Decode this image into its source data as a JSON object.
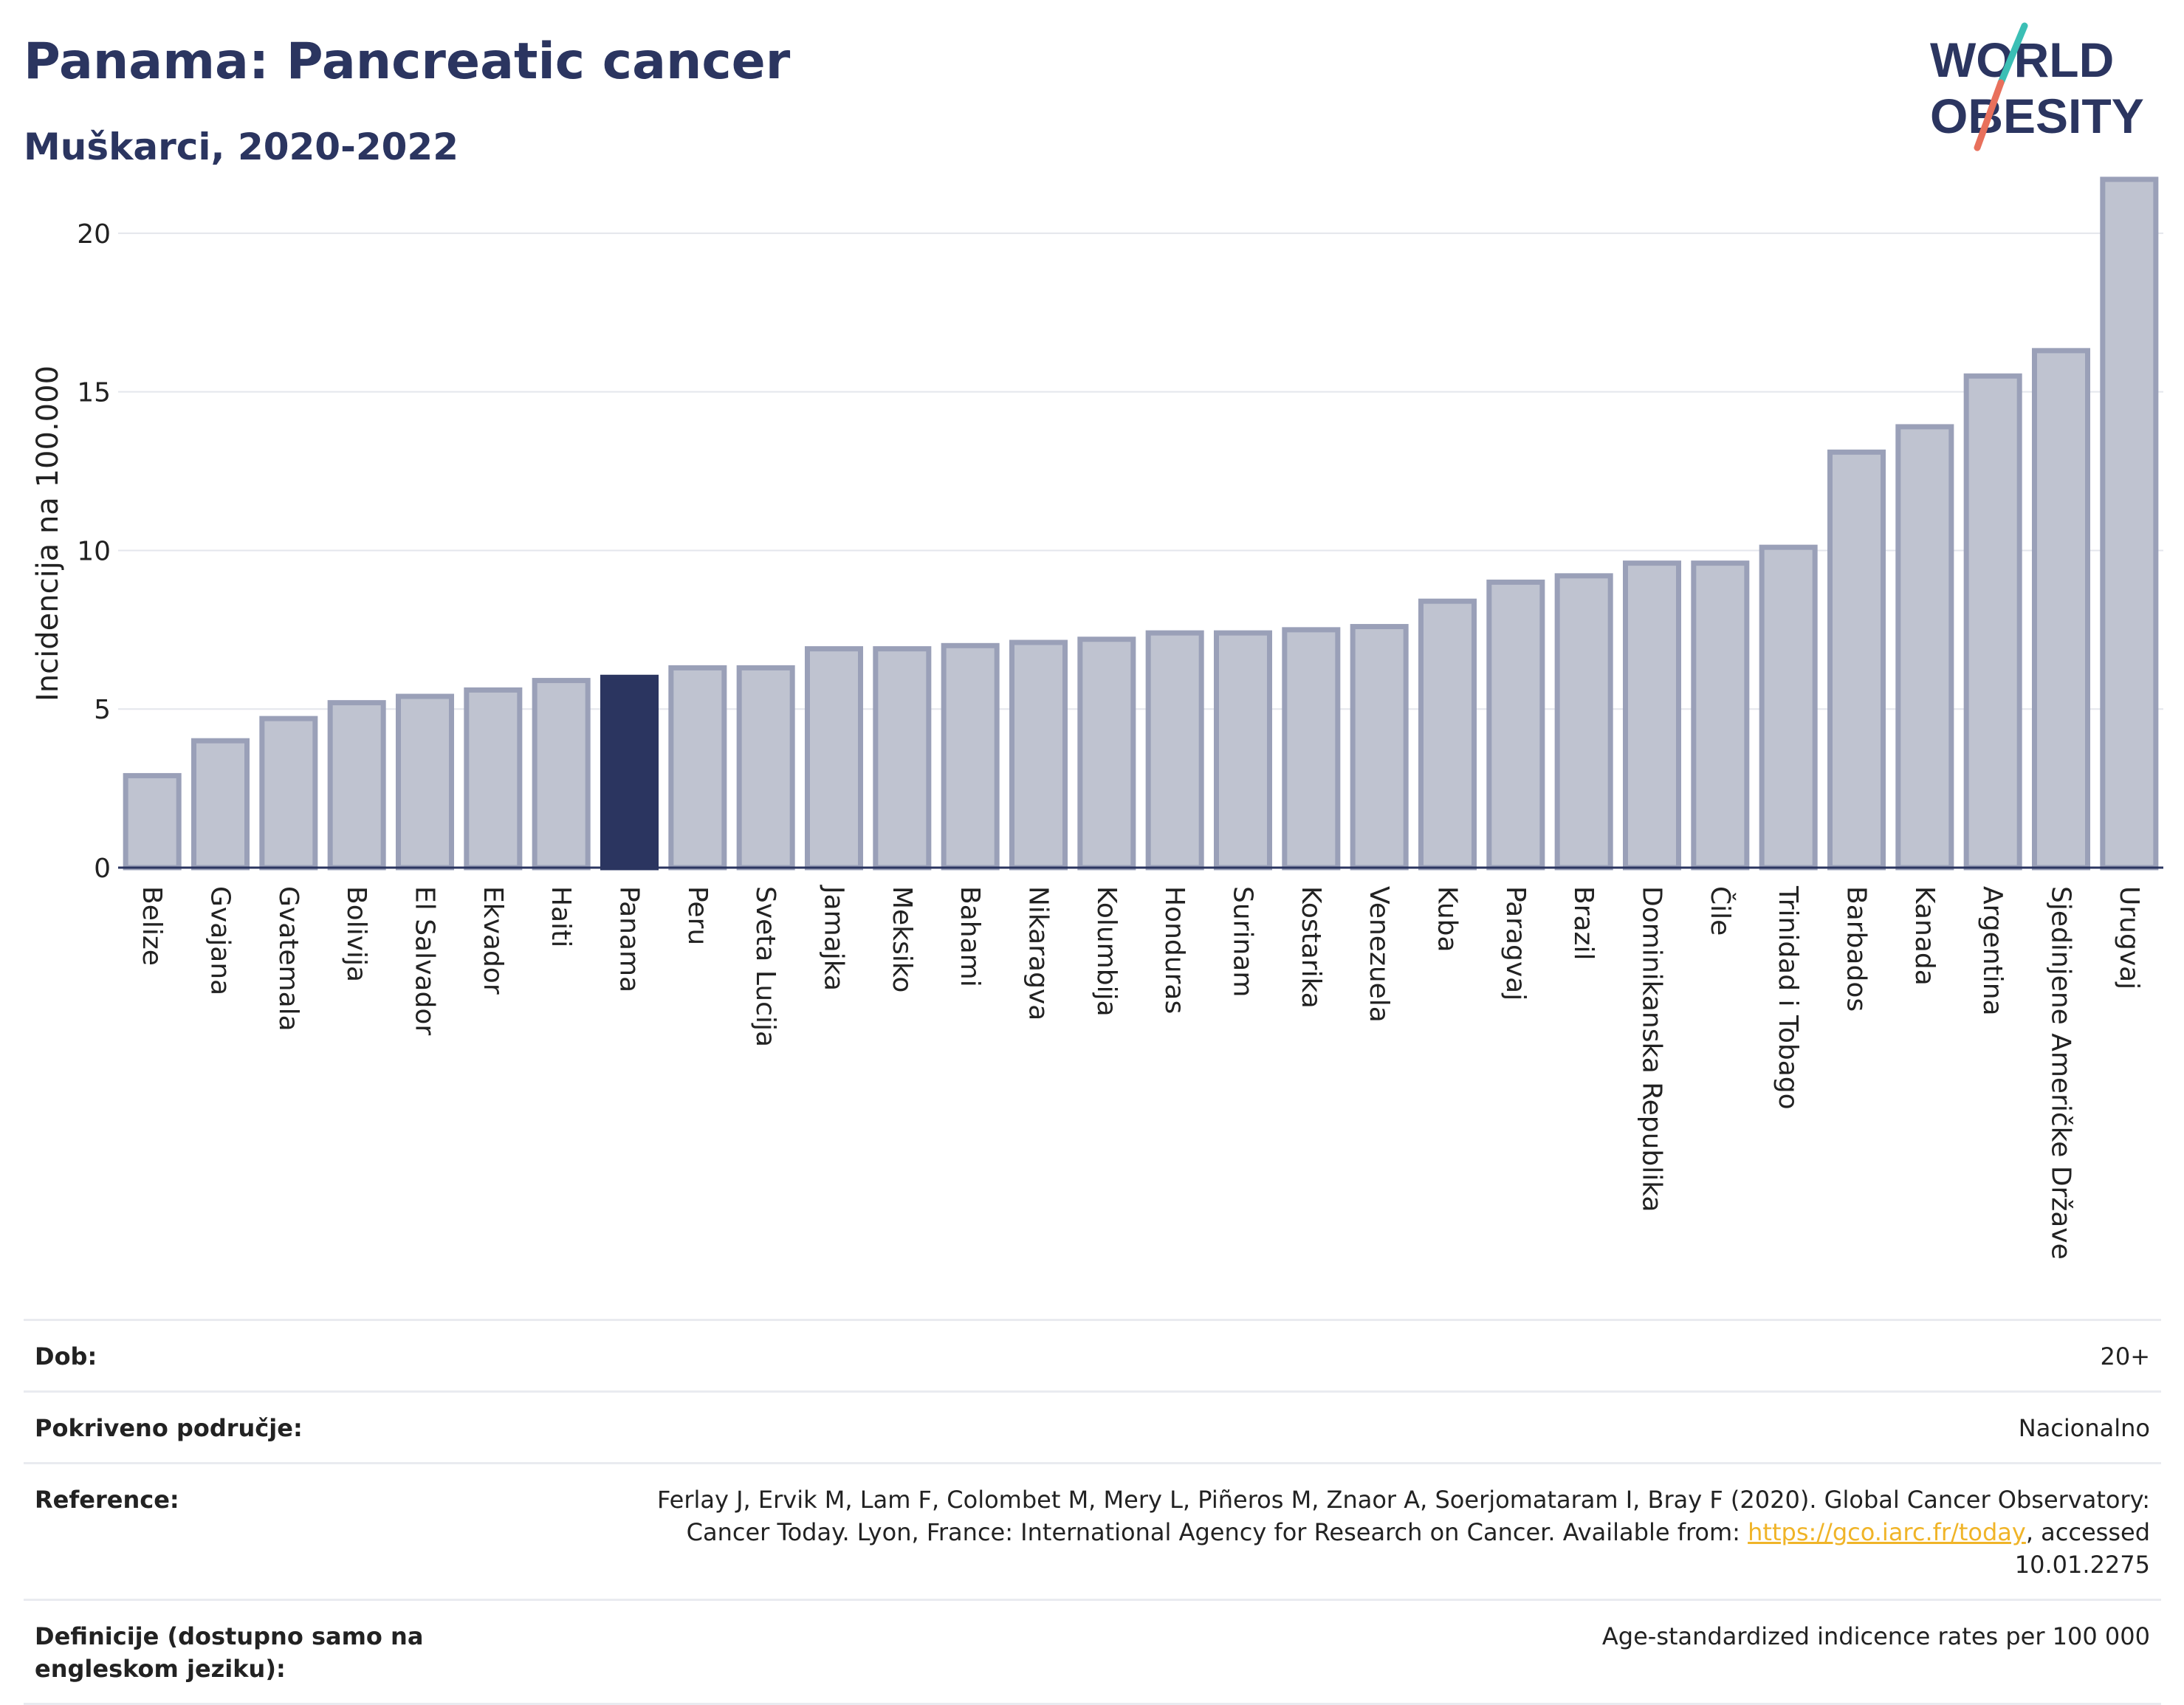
{
  "header": {
    "title": "Panama: Pancreatic cancer",
    "subtitle": "Muškarci, 2020-2022",
    "logo_line1": "WORLD",
    "logo_line2": "OBESITY"
  },
  "colors": {
    "highlight_bar": "#2b3560",
    "bar_fill": "#bfc3d0",
    "bar_stroke": "#9aa0b8",
    "text_primary": "#2b3560",
    "link": "#f0b428"
  },
  "chart_data": {
    "type": "bar",
    "ylabel": "Incidencija na 100.000",
    "ylim": [
      0,
      22
    ],
    "yticks": [
      0,
      5,
      10,
      15,
      20
    ],
    "grid": true,
    "highlight": "Panama",
    "categories": [
      "Belize",
      "Gvajana",
      "Gvatemala",
      "Bolivija",
      "El Salvador",
      "Ekvador",
      "Haiti",
      "Panama",
      "Peru",
      "Sveta Lucija",
      "Jamajka",
      "Meksiko",
      "Bahami",
      "Nikaragva",
      "Kolumbija",
      "Honduras",
      "Surinam",
      "Kostarika",
      "Venezuela",
      "Kuba",
      "Paragvaj",
      "Brazil",
      "Dominikanska Republika",
      "Čile",
      "Trinidad i Tobago",
      "Barbados",
      "Kanada",
      "Argentina",
      "Sjedinjene Američke Države",
      "Urugvaj"
    ],
    "values": [
      2.9,
      4.0,
      4.7,
      5.2,
      5.4,
      5.6,
      5.9,
      6.0,
      6.3,
      6.3,
      6.9,
      6.9,
      7.0,
      7.1,
      7.2,
      7.4,
      7.4,
      7.5,
      7.6,
      8.4,
      9.0,
      9.2,
      9.6,
      9.6,
      10.1,
      13.1,
      13.9,
      15.5,
      16.3,
      21.7
    ]
  },
  "info": {
    "age_label": "Dob:",
    "age_value": "20+",
    "coverage_label": "Pokriveno područje:",
    "coverage_value": "Nacionalno",
    "reference_label": "Reference:",
    "reference_text_before": "Ferlay J, Ervik M, Lam F, Colombet M, Mery L, Piñeros M, Znaor A, Soerjomataram I, Bray F (2020). Global Cancer Observatory: Cancer Today. Lyon, France: International Agency for Research on Cancer. Available from: ",
    "reference_link": "https://gco.iarc.fr/today",
    "reference_text_after": ", accessed 10.01.2275",
    "definitions_label": "Definicije (dostupno samo na engleskom jeziku):",
    "definitions_value": "Age-standardized indicence rates per 100 000"
  }
}
